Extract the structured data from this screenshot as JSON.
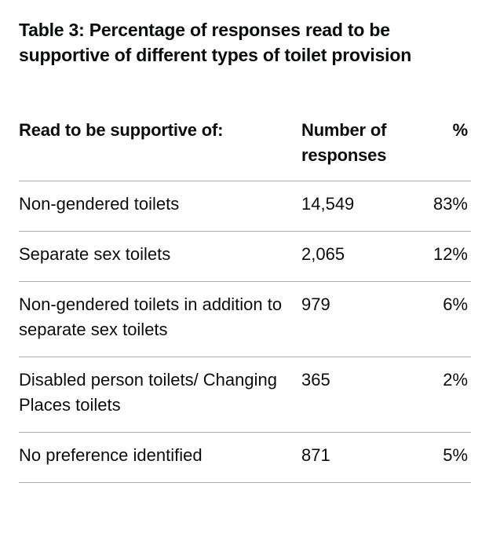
{
  "table": {
    "caption": "Table 3: Percentage of responses read to be supportive of different types of toilet provision",
    "headers": {
      "type": "Read to be supportive of:",
      "count": "Number of responses",
      "percent": "%"
    },
    "rows": [
      {
        "type": "Non-gendered toilets",
        "count": "14,549",
        "percent": "83%"
      },
      {
        "type": "Separate sex toilets",
        "count": "2,065",
        "percent": "12%"
      },
      {
        "type": "Non-gendered toilets in addition to separate sex toilets",
        "count": "979",
        "percent": "6%"
      },
      {
        "type": "Disabled person toilets/ Changing Places toilets",
        "count": "365",
        "percent": "2%"
      },
      {
        "type": "No preference identified",
        "count": "871",
        "percent": "5%"
      }
    ]
  }
}
